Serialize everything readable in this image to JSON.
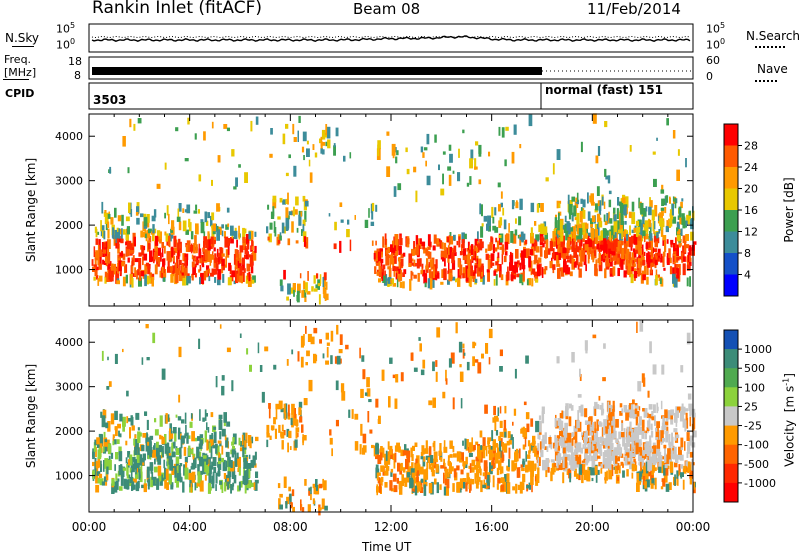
{
  "header": {
    "station": "Rankin Inlet (fitACF)",
    "beam": "Beam 08",
    "date": "11/Feb/2014"
  },
  "noise_panel": {
    "left_label": "N.Sky",
    "right_label": "N.Search",
    "ticks_left": [
      "10^5",
      "10^0"
    ],
    "ticks_right": [
      "10^5",
      "10^0"
    ]
  },
  "freq_panel": {
    "left_label_1": "Freq.",
    "left_label_2": "[MHz]",
    "right_label": "Nave",
    "ticks_left": [
      "18",
      "8"
    ],
    "ticks_right": [
      "60",
      "0"
    ]
  },
  "cpid_panel": {
    "label": "CPID",
    "value_1": "3503",
    "value_2": "normal (fast) 151"
  },
  "chart_data": [
    {
      "type": "heatmap",
      "name": "power",
      "ylabel": "Slant Range [km]",
      "yticks": [
        1000,
        2000,
        3000,
        4000
      ],
      "ylim": [
        180,
        4500
      ],
      "xlim": [
        0,
        24
      ],
      "colorbar_label": "Power [dB]",
      "colorbar_ticks": [
        "28",
        "24",
        "20",
        "16",
        "12",
        "8",
        "4"
      ],
      "colorbar_colors": [
        "#ff0000",
        "#ff5a00",
        "#ff9a00",
        "#e8c800",
        "#3c9f50",
        "#3c8c9a",
        "#1450c8",
        "#0000ff"
      ]
    },
    {
      "type": "heatmap",
      "name": "velocity",
      "ylabel": "Slant Range [km]",
      "yticks": [
        1000,
        2000,
        3000,
        4000
      ],
      "ylim": [
        180,
        4500
      ],
      "xlim": [
        0,
        24
      ],
      "colorbar_label": "Velocity",
      "colorbar_unit": "[m s",
      "colorbar_unit_exp": "-1",
      "colorbar_unit_close": "]",
      "colorbar_ticks": [
        "1000",
        "500",
        "100",
        "25",
        "-25",
        "-100",
        "-500",
        "-1000"
      ],
      "colorbar_colors": [
        "#1450b4",
        "#3c8c78",
        "#50aa50",
        "#8cd23c",
        "#c8c8c8",
        "#ff9a00",
        "#ff6400",
        "#ff2800",
        "#ff0000"
      ]
    }
  ],
  "x_axis": {
    "ticks": [
      "00:00",
      "04:00",
      "08:00",
      "12:00",
      "16:00",
      "20:00",
      "00:00"
    ],
    "label": "Time UT"
  }
}
